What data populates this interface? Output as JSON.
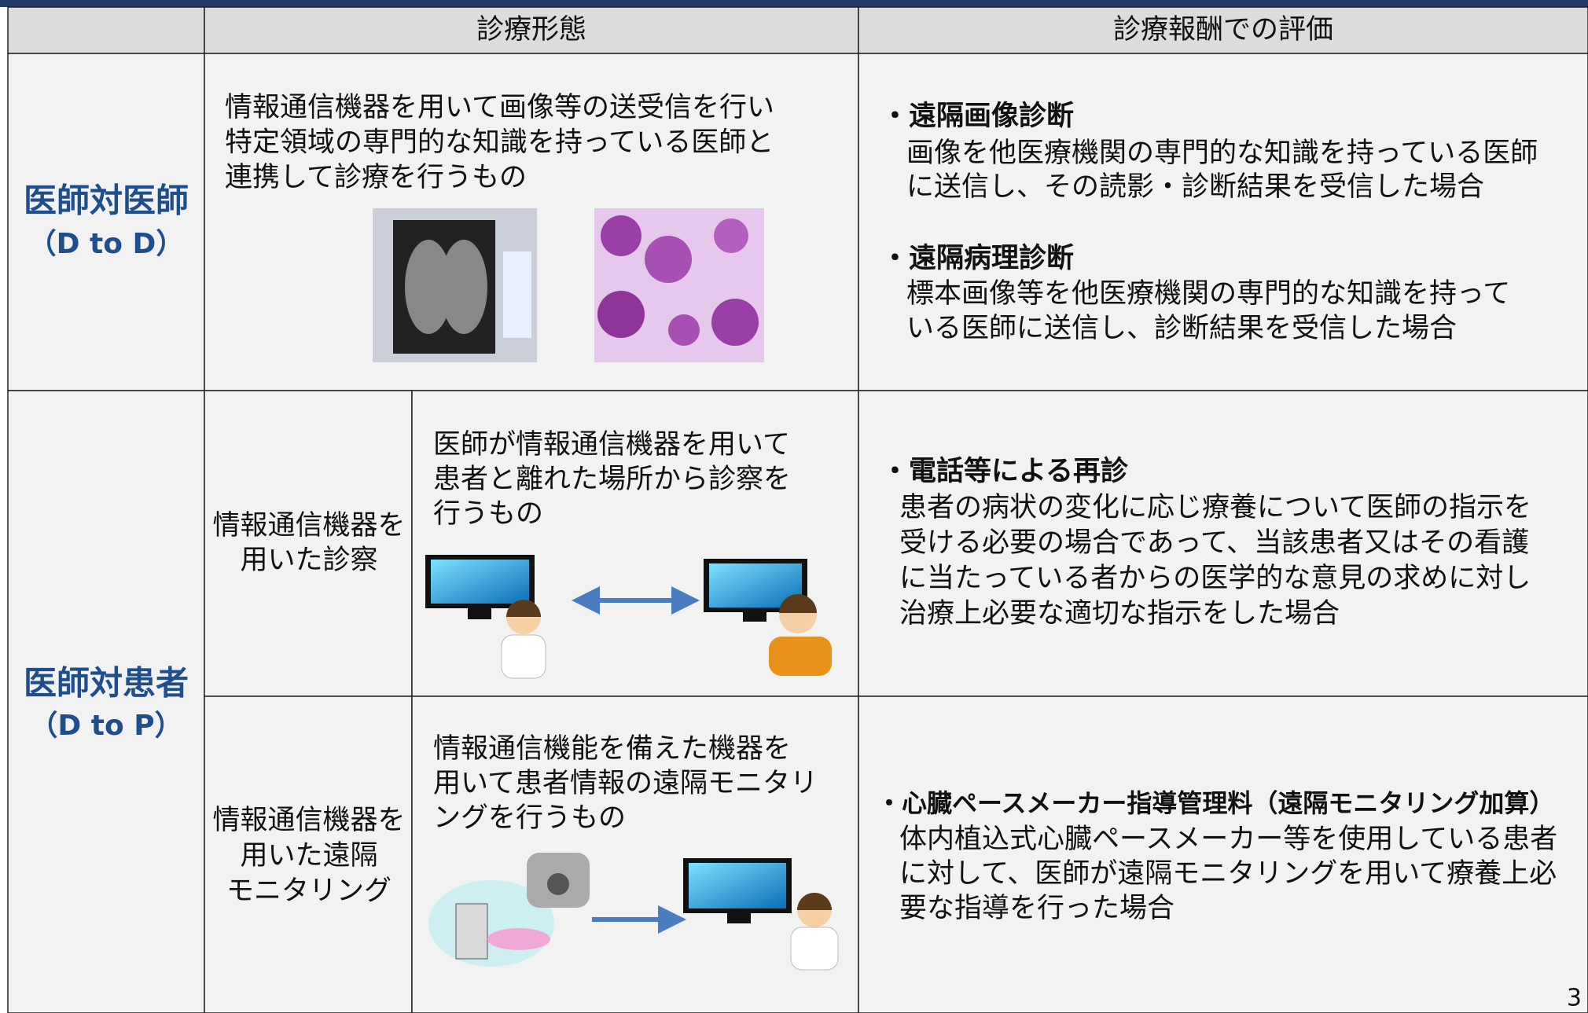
{
  "header": {
    "mode": "診療形態",
    "evaluation": "診療報酬での評価"
  },
  "rows": [
    {
      "category": "医師対医師",
      "category_note": "（D to D）",
      "description": [
        "情報通信機器を用いて画像等の送受信を行い",
        "特定領域の専門的な知識を持っている医師と",
        "連携して診療を行うもの"
      ],
      "evaluation": [
        {
          "title": "・遠隔画像診断",
          "text": [
            "画像を他医療機関の専門的な知識を持っている医師",
            "に送信し、その読影・診断結果を受信した場合"
          ]
        },
        {
          "title": "・遠隔病理診断",
          "text": [
            "標本画像等を他医療機関の専門的な知識を持って",
            "いる医師に送信し、診断結果を受信した場合"
          ]
        }
      ]
    },
    {
      "category": "医師対患者",
      "category_note": "（D to P）",
      "subrows": [
        {
          "label": [
            "情報通信機器を",
            "用いた診察"
          ],
          "description": [
            "医師が情報通信機器を用いて",
            "患者と離れた場所から診察を",
            "行うもの"
          ],
          "evaluation": {
            "title": "・電話等による再診",
            "text": [
              "患者の病状の変化に応じ療養について医師の指示を",
              "受ける必要の場合であって、当該患者又はその看護",
              "に当たっている者からの医学的な意見の求めに対し",
              "治療上必要な適切な指示をした場合"
            ]
          }
        },
        {
          "label": [
            "情報通信機器を",
            "用いた遠隔",
            "モニタリング"
          ],
          "description": [
            "情報通信機能を備えた機器を",
            "用いて患者情報の遠隔モニタリ",
            "ングを行うもの"
          ],
          "evaluation": {
            "title": "・心臓ペースメーカー指導管理料（遠隔モニタリング加算）",
            "text": [
              "体内植込式心臓ペースメーカー等を使用している患者",
              "に対して、医師が遠隔モニタリングを用いて療養上必",
              "要な指導を行った場合"
            ]
          }
        }
      ]
    }
  ],
  "page_number": "3"
}
